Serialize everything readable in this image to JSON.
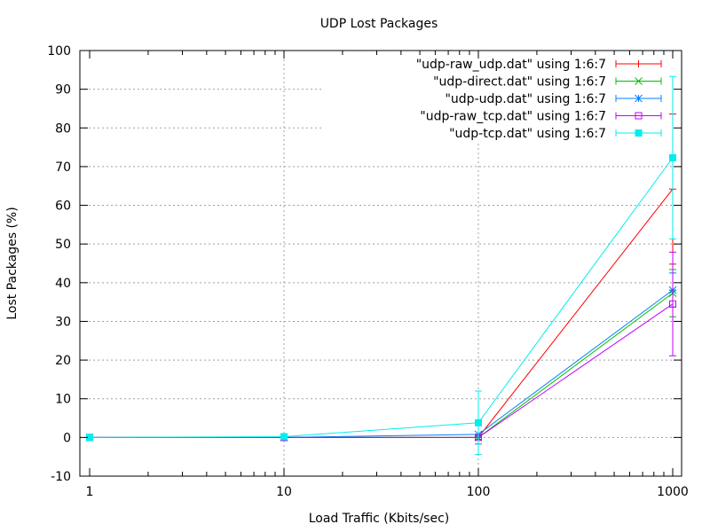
{
  "chart_data": {
    "type": "line",
    "title": "UDP Lost Packages",
    "xlabel": "Load Traffic (Kbits/sec)",
    "ylabel": "Lost Packages (%)",
    "xscale": "log",
    "xlim": [
      1,
      1000
    ],
    "ylim": [
      -10,
      100
    ],
    "xticks": [
      "1",
      "10",
      "100",
      "1000"
    ],
    "xtick_values": [
      1,
      10,
      100,
      1000
    ],
    "yticks": [
      -10,
      0,
      10,
      20,
      30,
      40,
      50,
      60,
      70,
      80,
      90,
      100
    ],
    "grid": true,
    "legend_position": "top-right",
    "x": [
      1,
      10,
      100,
      1000
    ],
    "series": [
      {
        "name": "\"udp-raw_udp.dat\" using 1:6:7",
        "color": "#ff0000",
        "marker": "plus",
        "values": [
          0,
          0,
          0,
          64.2
        ],
        "errors": [
          0,
          0,
          0.5,
          19.4
        ]
      },
      {
        "name": "\"udp-direct.dat\" using 1:6:7",
        "color": "#00c000",
        "marker": "x",
        "values": [
          0,
          0,
          0,
          37.3
        ],
        "errors": [
          0,
          0,
          0.5,
          6.1
        ]
      },
      {
        "name": "\"udp-udp.dat\" using 1:6:7",
        "color": "#0080ff",
        "marker": "star",
        "values": [
          0,
          0,
          0.8,
          38.1
        ],
        "errors": [
          0,
          0,
          2.5,
          4.4
        ]
      },
      {
        "name": "\"udp-raw_tcp.dat\" using 1:6:7",
        "color": "#c000ff",
        "marker": "open-square",
        "values": [
          0,
          0,
          0,
          34.5
        ],
        "errors": [
          0,
          0,
          0.5,
          13.4
        ]
      },
      {
        "name": "\"udp-tcp.dat\" using 1:6:7",
        "color": "#00eeee",
        "marker": "filled-square",
        "values": [
          0,
          0.2,
          3.8,
          72.3
        ],
        "errors": [
          0,
          0,
          8.2,
          21.0
        ]
      }
    ]
  }
}
